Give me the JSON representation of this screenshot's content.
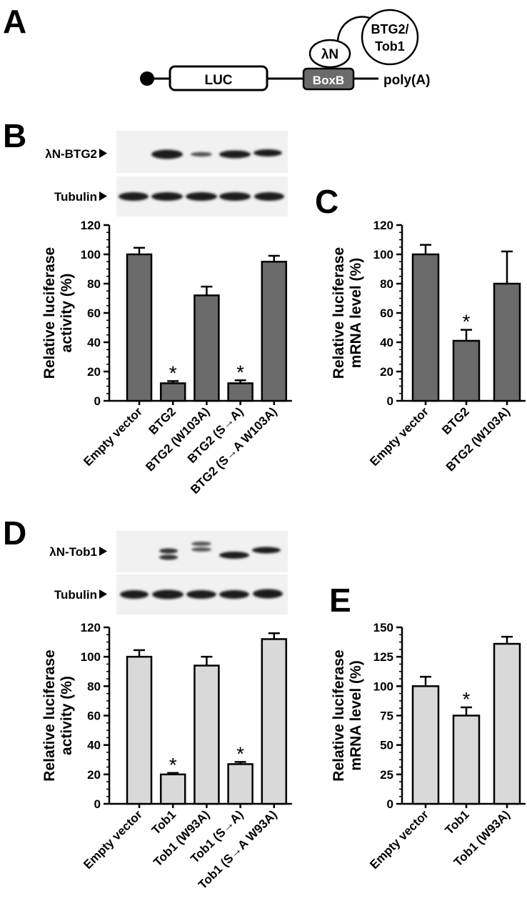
{
  "panels": {
    "a": "A",
    "b": "B",
    "c": "C",
    "d": "D",
    "e": "E"
  },
  "construct": {
    "luc": "LUC",
    "boxb": "BoxB",
    "polya": "poly(A)",
    "lambda_n": "λN",
    "fusion_line1": "BTG2/",
    "fusion_line2": "Tob1"
  },
  "blots": {
    "b_protein": "λN-BTG2",
    "b_loading": "Tubulin",
    "d_protein": "λN-Tob1",
    "d_loading": "Tubulin"
  },
  "colors": {
    "btg2_bars": "#6b6b6b",
    "tob1_bars": "#d9d9d9",
    "boxb_fill": "#6b6b6b"
  },
  "chart_data": [
    {
      "id": "B",
      "type": "bar",
      "ylabel_line1": "Relative luciferase",
      "ylabel_line2": "activity (%)",
      "ylim": [
        0,
        120
      ],
      "yticks": [
        0,
        20,
        40,
        60,
        80,
        100,
        120
      ],
      "categories": [
        "Empty vector",
        "BTG2",
        "BTG2 (W103A)",
        "BTG2 (S→A)",
        "BTG2 (S→A W103A)"
      ],
      "values": [
        100,
        12,
        72,
        12,
        95
      ],
      "errors": [
        4.5,
        1.5,
        6,
        2,
        4
      ],
      "significance": [
        "",
        "*",
        "",
        "*",
        ""
      ]
    },
    {
      "id": "C",
      "type": "bar",
      "ylabel_line1": "Relative luciferase",
      "ylabel_line2": "mRNA level (%)",
      "ylim": [
        0,
        120
      ],
      "yticks": [
        0,
        20,
        40,
        60,
        80,
        100,
        120
      ],
      "categories": [
        "Empty vector",
        "BTG2",
        "BTG2 (W103A)"
      ],
      "values": [
        100,
        41,
        80
      ],
      "errors": [
        6.5,
        7.5,
        22
      ],
      "significance": [
        "",
        "*",
        ""
      ]
    },
    {
      "id": "D",
      "type": "bar",
      "ylabel_line1": "Relative luciferase",
      "ylabel_line2": "activity (%)",
      "ylim": [
        0,
        120
      ],
      "yticks": [
        0,
        20,
        40,
        60,
        80,
        100,
        120
      ],
      "categories": [
        "Empty vector",
        "Tob1",
        "Tob1 (W93A)",
        "Tob1 (S→A)",
        "Tob1 (S→A W93A)"
      ],
      "values": [
        100,
        20,
        94,
        27,
        112
      ],
      "errors": [
        4.5,
        1,
        6,
        1.5,
        4
      ],
      "significance": [
        "",
        "*",
        "",
        "*",
        ""
      ]
    },
    {
      "id": "E",
      "type": "bar",
      "ylabel_line1": "Relative luciferase",
      "ylabel_line2": "mRNA level (%)",
      "ylim": [
        0,
        150
      ],
      "yticks": [
        0,
        25,
        50,
        75,
        100,
        125,
        150
      ],
      "categories": [
        "Empty vector",
        "Tob1",
        "Tob1 (W93A)"
      ],
      "values": [
        100,
        75,
        136
      ],
      "errors": [
        8,
        7,
        6
      ],
      "significance": [
        "",
        "*",
        ""
      ]
    }
  ]
}
